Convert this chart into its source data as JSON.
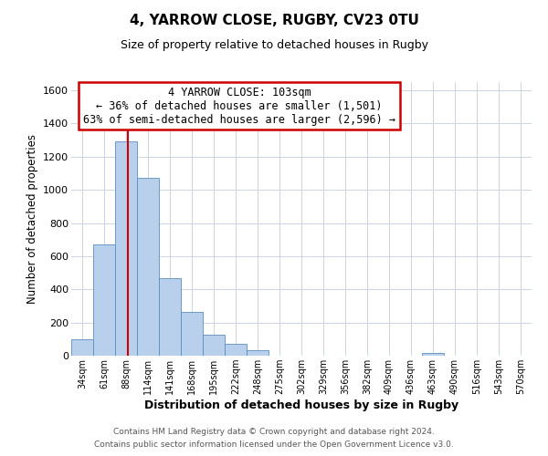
{
  "title": "4, YARROW CLOSE, RUGBY, CV23 0TU",
  "subtitle": "Size of property relative to detached houses in Rugby",
  "xlabel": "Distribution of detached houses by size in Rugby",
  "ylabel": "Number of detached properties",
  "bin_labels": [
    "34sqm",
    "61sqm",
    "88sqm",
    "114sqm",
    "141sqm",
    "168sqm",
    "195sqm",
    "222sqm",
    "248sqm",
    "275sqm",
    "302sqm",
    "329sqm",
    "356sqm",
    "382sqm",
    "409sqm",
    "436sqm",
    "463sqm",
    "490sqm",
    "516sqm",
    "543sqm",
    "570sqm"
  ],
  "bar_values": [
    100,
    670,
    1290,
    1075,
    465,
    265,
    128,
    73,
    32,
    0,
    0,
    0,
    0,
    0,
    0,
    0,
    17,
    0,
    0,
    0,
    0
  ],
  "bar_color": "#b8d0ec",
  "bar_edge_color": "#5a8fc0",
  "ylim": [
    0,
    1650
  ],
  "yticks": [
    0,
    200,
    400,
    600,
    800,
    1000,
    1200,
    1400,
    1600
  ],
  "annotation_line1": "4 YARROW CLOSE: 103sqm",
  "annotation_line2": "← 36% of detached houses are smaller (1,501)",
  "annotation_line3": "63% of semi-detached houses are larger (2,596) →",
  "annotation_box_color": "#ffffff",
  "annotation_box_edge": "#cc0000",
  "footer_line1": "Contains HM Land Registry data © Crown copyright and database right 2024.",
  "footer_line2": "Contains public sector information licensed under the Open Government Licence v3.0.",
  "background_color": "#ffffff",
  "grid_color": "#ccd5e4",
  "red_line_color": "#cc0000",
  "title_fontsize": 11,
  "subtitle_fontsize": 9
}
